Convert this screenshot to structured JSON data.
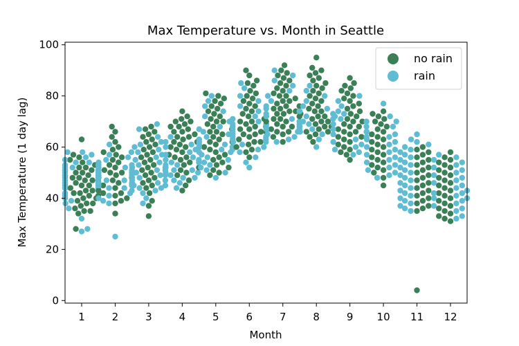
{
  "chart_data": {
    "type": "scatter",
    "subtype": "swarm",
    "title": "Max Temperature vs. Month in Seattle",
    "xlabel": "Month",
    "ylabel": "Max Temperature (1 day lag)",
    "ylim": [
      -1,
      101
    ],
    "yticks": [
      0,
      20,
      40,
      60,
      80,
      100
    ],
    "categories": [
      "1",
      "2",
      "3",
      "4",
      "5",
      "6",
      "7",
      "8",
      "9",
      "10",
      "11",
      "12"
    ],
    "hue_order": [
      "no rain",
      "rain"
    ],
    "legend_position": "top-right",
    "grid": false,
    "series": [
      {
        "name": "no rain",
        "color": "#3a7f55",
        "values": [
          [
            28,
            34,
            35,
            35,
            36,
            37,
            38,
            38,
            39,
            40,
            40,
            41,
            41,
            42,
            42,
            43,
            43,
            44,
            44,
            45,
            45,
            46,
            46,
            47,
            47,
            48,
            48,
            49,
            49,
            50,
            50,
            51,
            51,
            52,
            52,
            53,
            54,
            55,
            56,
            57,
            63
          ],
          [
            34,
            38,
            39,
            40,
            41,
            42,
            42,
            43,
            44,
            45,
            46,
            46,
            47,
            48,
            48,
            49,
            50,
            50,
            51,
            52,
            53,
            54,
            55,
            56,
            57,
            58,
            59,
            60,
            62,
            64,
            66,
            68
          ],
          [
            33,
            37,
            39,
            42,
            44,
            45,
            46,
            47,
            48,
            49,
            50,
            51,
            52,
            53,
            54,
            55,
            56,
            57,
            58,
            59,
            60,
            61,
            62,
            63,
            64,
            65,
            66,
            67,
            68
          ],
          [
            43,
            45,
            47,
            49,
            50,
            51,
            52,
            53,
            54,
            55,
            56,
            56,
            57,
            58,
            59,
            60,
            60,
            61,
            62,
            62,
            63,
            64,
            64,
            65,
            66,
            66,
            67,
            68,
            68,
            69,
            70,
            70,
            71,
            72,
            74
          ],
          [
            49,
            50,
            51,
            52,
            53,
            54,
            55,
            56,
            57,
            58,
            59,
            60,
            61,
            62,
            62,
            63,
            64,
            65,
            66,
            66,
            67,
            68,
            69,
            70,
            70,
            71,
            72,
            73,
            74,
            75,
            76,
            77,
            78,
            79,
            80,
            81
          ],
          [
            56,
            58,
            59,
            60,
            61,
            62,
            62,
            63,
            64,
            65,
            65,
            66,
            66,
            67,
            67,
            68,
            68,
            69,
            70,
            70,
            71,
            72,
            73,
            74,
            75,
            76,
            77,
            78,
            79,
            80,
            81,
            82,
            84,
            85,
            86,
            88,
            90
          ],
          [
            62,
            64,
            65,
            66,
            66,
            67,
            68,
            68,
            69,
            69,
            70,
            70,
            71,
            71,
            72,
            72,
            73,
            73,
            74,
            74,
            75,
            75,
            76,
            76,
            77,
            78,
            78,
            79,
            80,
            80,
            81,
            82,
            83,
            84,
            85,
            86,
            87,
            88,
            89,
            90,
            92
          ],
          [
            62,
            64,
            65,
            66,
            66,
            67,
            68,
            68,
            69,
            70,
            70,
            71,
            72,
            72,
            73,
            74,
            74,
            75,
            76,
            77,
            78,
            79,
            80,
            81,
            82,
            83,
            84,
            85,
            86,
            87,
            88,
            89,
            90,
            91,
            95
          ],
          [
            55,
            57,
            58,
            59,
            60,
            61,
            62,
            63,
            64,
            64,
            65,
            66,
            66,
            67,
            68,
            68,
            69,
            70,
            70,
            71,
            72,
            73,
            74,
            75,
            76,
            77,
            78,
            79,
            80,
            81,
            82,
            83,
            84,
            85,
            87
          ],
          [
            45,
            48,
            50,
            51,
            52,
            53,
            54,
            55,
            56,
            57,
            58,
            59,
            60,
            61,
            62,
            63,
            64,
            65,
            66,
            67,
            68,
            69,
            70,
            71,
            72,
            73,
            74
          ],
          [
            4,
            35,
            36,
            37,
            38,
            39,
            40,
            41,
            42,
            43,
            44,
            45,
            46,
            47,
            48,
            49,
            50,
            51,
            52,
            53,
            54,
            55,
            56,
            57,
            58,
            59,
            60
          ],
          [
            31,
            32,
            33,
            34,
            35,
            36,
            37,
            38,
            39,
            40,
            41,
            42,
            43,
            44,
            45,
            46,
            47,
            48,
            49,
            50,
            51,
            52,
            53,
            54,
            55,
            56,
            58
          ]
        ]
      },
      {
        "name": "rain",
        "color": "#5fbcd3",
        "values": [
          [
            27,
            28,
            32,
            36,
            38,
            39,
            40,
            41,
            42,
            43,
            44,
            44,
            45,
            45,
            46,
            46,
            47,
            47,
            48,
            48,
            49,
            49,
            50,
            50,
            51,
            51,
            52,
            52,
            53,
            53,
            54,
            54,
            55,
            56,
            57,
            58,
            58
          ],
          [
            25,
            38,
            39,
            40,
            41,
            42,
            43,
            44,
            44,
            45,
            45,
            46,
            46,
            47,
            47,
            48,
            48,
            49,
            49,
            50,
            50,
            51,
            51,
            52,
            52,
            53,
            53,
            54,
            55,
            56,
            57,
            58,
            61
          ],
          [
            38,
            40,
            42,
            43,
            44,
            44,
            45,
            45,
            46,
            46,
            47,
            47,
            48,
            48,
            49,
            49,
            50,
            50,
            51,
            51,
            52,
            52,
            53,
            54,
            55,
            56,
            57,
            58,
            59,
            60,
            61,
            62,
            64,
            67,
            69
          ],
          [
            44,
            46,
            47,
            48,
            48,
            49,
            50,
            50,
            51,
            51,
            52,
            52,
            53,
            53,
            54,
            54,
            55,
            55,
            56,
            57,
            58,
            59,
            60,
            61,
            62,
            64
          ],
          [
            48,
            50,
            51,
            52,
            53,
            54,
            55,
            56,
            57,
            58,
            58,
            59,
            59,
            60,
            60,
            61,
            61,
            62,
            62,
            63,
            64,
            65,
            66,
            67,
            68,
            70,
            72,
            74,
            76,
            78,
            80
          ],
          [
            52,
            54,
            56,
            58,
            59,
            60,
            61,
            62,
            62,
            63,
            63,
            64,
            64,
            65,
            66,
            67,
            68,
            69,
            70,
            71,
            72,
            74,
            76,
            78,
            80,
            83,
            85
          ],
          [
            62,
            63,
            64,
            65,
            66,
            67,
            67,
            68,
            68,
            69,
            69,
            70,
            71,
            72,
            73,
            74,
            75,
            76,
            78,
            80,
            82,
            84,
            86,
            88,
            90
          ],
          [
            60,
            63,
            65,
            66,
            67,
            68,
            69,
            70,
            71,
            72,
            73,
            74,
            75,
            76,
            78,
            80,
            82,
            84
          ],
          [
            57,
            58,
            59,
            60,
            61,
            62,
            63,
            64,
            65,
            66,
            67,
            68,
            69,
            70,
            71,
            72,
            73,
            74,
            76,
            78,
            80
          ],
          [
            48,
            49,
            50,
            51,
            52,
            53,
            54,
            55,
            56,
            57,
            58,
            59,
            60,
            61,
            62,
            63,
            64,
            65,
            66,
            68,
            70,
            72,
            77
          ],
          [
            35,
            36,
            37,
            38,
            39,
            40,
            41,
            42,
            43,
            44,
            45,
            46,
            47,
            48,
            49,
            50,
            51,
            52,
            53,
            54,
            55,
            56,
            57,
            58,
            59,
            60,
            61,
            62,
            63,
            65
          ],
          [
            32,
            33,
            35,
            36,
            37,
            38,
            39,
            40,
            40,
            41,
            42,
            42,
            43,
            44,
            45,
            46,
            47,
            48,
            49,
            50,
            51,
            52,
            53,
            54,
            55,
            56,
            57
          ]
        ]
      }
    ]
  }
}
